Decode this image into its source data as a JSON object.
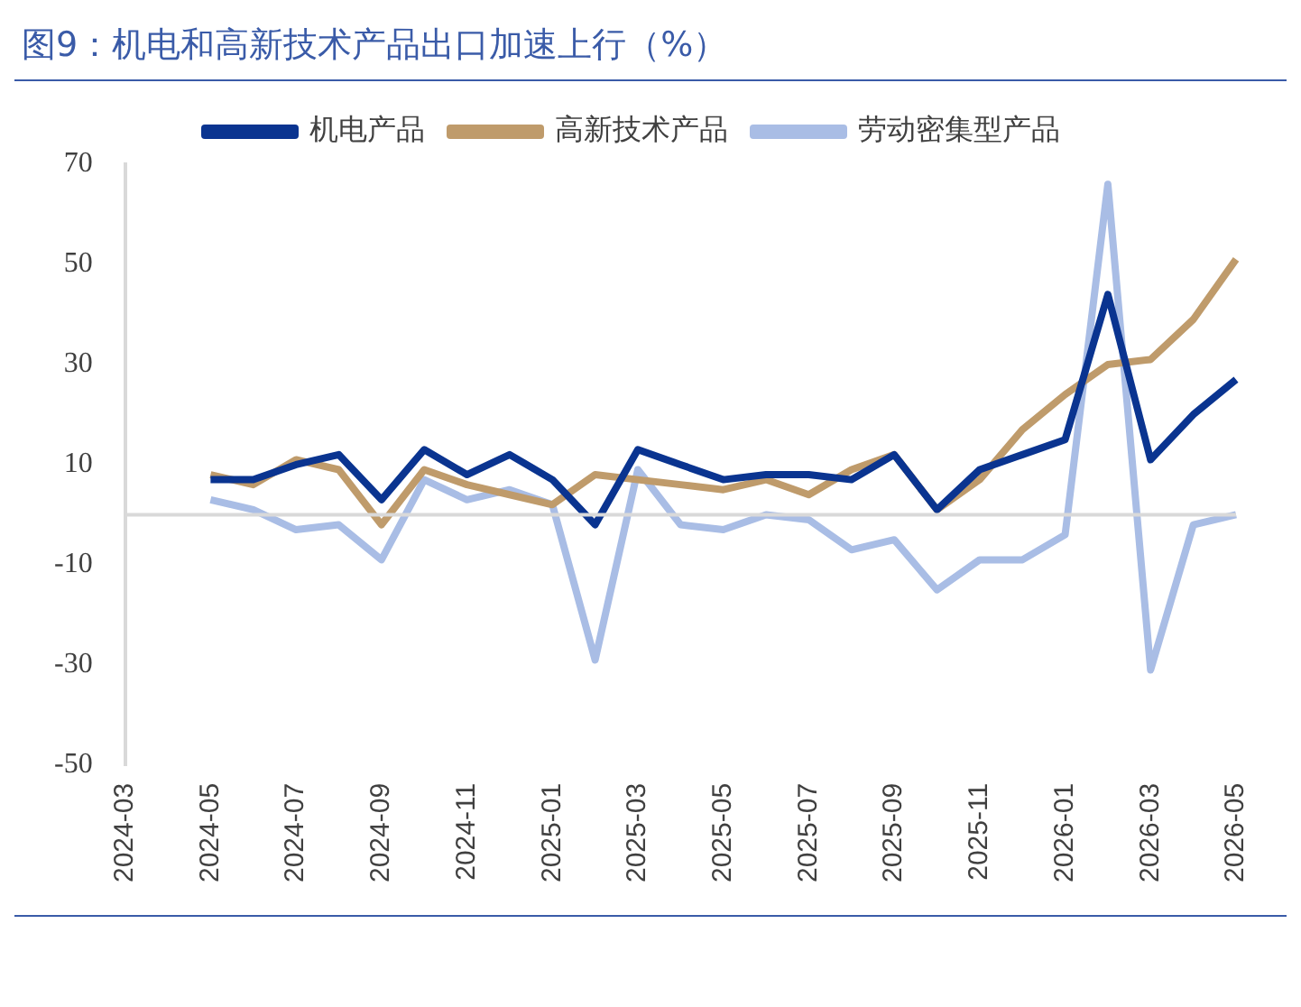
{
  "chart_data": {
    "type": "line",
    "title": "图9：机电和高新技术产品出口加速上行（%）",
    "categories": [
      "2024-03",
      null,
      "2024-05",
      null,
      "2024-07",
      null,
      "2024-09",
      null,
      "2024-11",
      null,
      "2025-01",
      null,
      "2025-03",
      null,
      "2025-05",
      null,
      "2025-07",
      null,
      "2025-09",
      null,
      "2025-11",
      null,
      "2026-01",
      null,
      "2026-03",
      null,
      "2026-05"
    ],
    "series": [
      {
        "name": "机电产品",
        "color": "#0a3490",
        "values": [
          null,
          null,
          7,
          7,
          10,
          12,
          3,
          13,
          8,
          12,
          7,
          -2,
          13,
          10,
          7,
          8,
          8,
          7,
          12,
          1,
          9,
          12,
          15,
          44,
          11,
          20,
          27
        ]
      },
      {
        "name": "高新技术产品",
        "color": "#bf9b6b",
        "values": [
          null,
          null,
          8,
          6,
          11,
          9,
          -2,
          9,
          6,
          4,
          2,
          8,
          7,
          6,
          5,
          7,
          4,
          9,
          12,
          1,
          7,
          17,
          24,
          30,
          31,
          39,
          51
        ]
      },
      {
        "name": "劳动密集型产品",
        "color": "#a9bde5",
        "values": [
          null,
          null,
          3,
          1,
          -3,
          -2,
          -9,
          7,
          3,
          5,
          2,
          -29,
          9,
          -2,
          -3,
          0,
          -1,
          -7,
          -5,
          -15,
          -9,
          -9,
          -4,
          66,
          -31,
          -2,
          0
        ]
      }
    ],
    "ylim": [
      -50,
      70
    ],
    "yticks": [
      70,
      50,
      30,
      10,
      -10,
      -30,
      -50
    ],
    "ref_lines": [
      {
        "axis": "y",
        "value": 0,
        "color": "#d9d9d9"
      }
    ],
    "grid": false,
    "legend": "top",
    "marker": "none",
    "line_style": "solid"
  }
}
